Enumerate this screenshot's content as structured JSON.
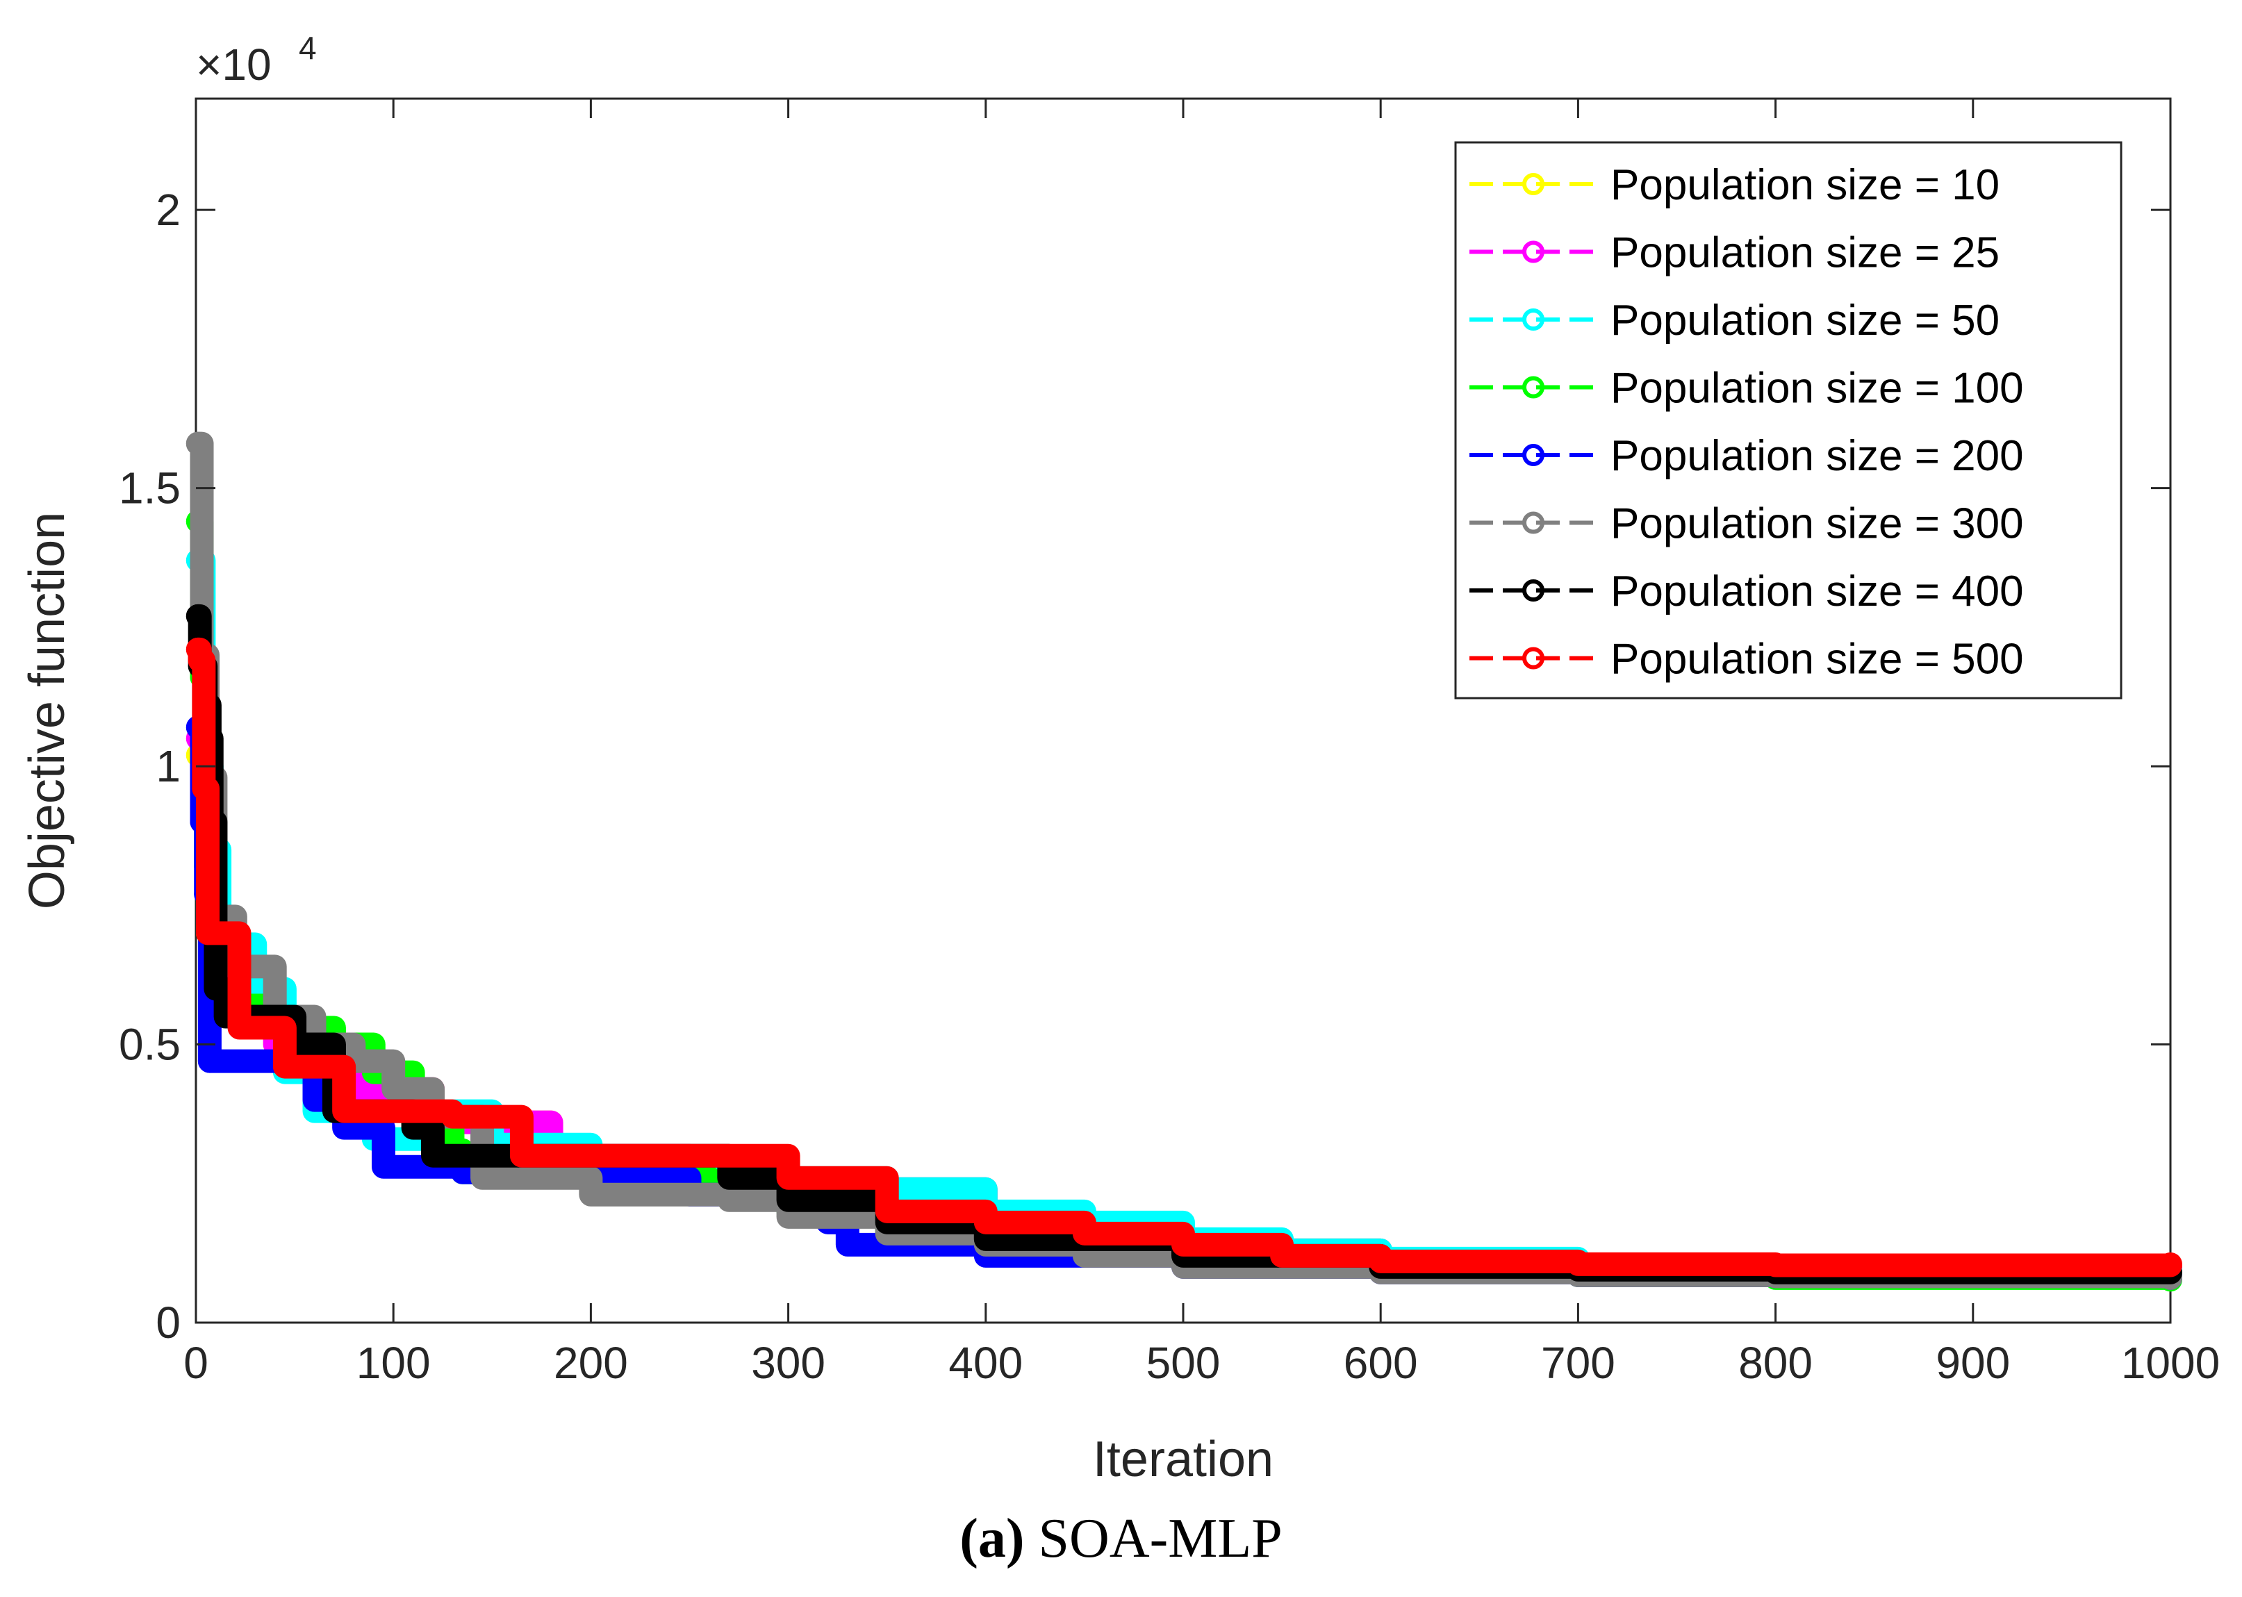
{
  "chart_data": {
    "type": "line",
    "title": "",
    "xlabel": "Iteration",
    "ylabel": "Objective function",
    "y_exponent_label": "×10",
    "y_exponent_power": "4",
    "xlim": [
      0,
      1000
    ],
    "ylim": [
      0,
      2.2
    ],
    "x_ticks": [
      0,
      100,
      200,
      300,
      400,
      500,
      600,
      700,
      800,
      900,
      1000
    ],
    "x_tick_labels": [
      "0",
      "100",
      "200",
      "300",
      "400",
      "500",
      "600",
      "700",
      "800",
      "900",
      "1000"
    ],
    "y_ticks": [
      0,
      0.5,
      1,
      1.5,
      2
    ],
    "y_tick_labels": [
      "0",
      "0.5",
      "1",
      "1.5",
      "2"
    ],
    "grid": false,
    "legend_position": "top-right",
    "series": [
      {
        "name": "Population size = 10",
        "color": "#ffff00",
        "points": [
          [
            1,
            1.02
          ],
          [
            3,
            0.9
          ],
          [
            6,
            0.7
          ],
          [
            15,
            0.6
          ],
          [
            40,
            0.5
          ],
          [
            80,
            0.42
          ],
          [
            120,
            0.36
          ],
          [
            180,
            0.3
          ],
          [
            250,
            0.27
          ],
          [
            300,
            0.24
          ],
          [
            400,
            0.17
          ],
          [
            500,
            0.13
          ],
          [
            600,
            0.11
          ],
          [
            700,
            0.1
          ],
          [
            1000,
            0.095
          ]
        ]
      },
      {
        "name": "Population size = 25",
        "color": "#ff00ff",
        "points": [
          [
            1,
            1.05
          ],
          [
            3,
            0.92
          ],
          [
            6,
            0.72
          ],
          [
            15,
            0.6
          ],
          [
            40,
            0.5
          ],
          [
            80,
            0.42
          ],
          [
            120,
            0.36
          ],
          [
            180,
            0.3
          ],
          [
            250,
            0.27
          ],
          [
            300,
            0.24
          ],
          [
            400,
            0.17
          ],
          [
            500,
            0.13
          ],
          [
            600,
            0.11
          ],
          [
            700,
            0.1
          ],
          [
            1000,
            0.095
          ]
        ]
      },
      {
        "name": "Population size = 50",
        "color": "#00ffff",
        "points": [
          [
            1,
            1.37
          ],
          [
            4,
            1.0
          ],
          [
            8,
            0.85
          ],
          [
            12,
            0.68
          ],
          [
            30,
            0.6
          ],
          [
            45,
            0.45
          ],
          [
            60,
            0.38
          ],
          [
            90,
            0.33
          ],
          [
            120,
            0.38
          ],
          [
            150,
            0.32
          ],
          [
            200,
            0.28
          ],
          [
            250,
            0.27
          ],
          [
            300,
            0.26
          ],
          [
            350,
            0.24
          ],
          [
            400,
            0.2
          ],
          [
            450,
            0.18
          ],
          [
            500,
            0.15
          ],
          [
            550,
            0.13
          ],
          [
            600,
            0.115
          ],
          [
            700,
            0.1
          ],
          [
            800,
            0.095
          ],
          [
            1000,
            0.09
          ]
        ]
      },
      {
        "name": "Population size = 100",
        "color": "#00ff00",
        "points": [
          [
            1,
            1.44
          ],
          [
            3,
            1.16
          ],
          [
            5,
            0.82
          ],
          [
            8,
            0.57
          ],
          [
            40,
            0.53
          ],
          [
            70,
            0.5
          ],
          [
            90,
            0.45
          ],
          [
            110,
            0.36
          ],
          [
            130,
            0.31
          ],
          [
            135,
            0.27
          ],
          [
            200,
            0.26
          ],
          [
            260,
            0.25
          ],
          [
            300,
            0.2
          ],
          [
            350,
            0.15
          ],
          [
            400,
            0.13
          ],
          [
            500,
            0.11
          ],
          [
            600,
            0.095
          ],
          [
            700,
            0.085
          ],
          [
            800,
            0.08
          ],
          [
            1000,
            0.077
          ]
        ]
      },
      {
        "name": "Population size = 200",
        "color": "#0000ff",
        "points": [
          [
            1,
            1.07
          ],
          [
            3,
            0.9
          ],
          [
            5,
            0.77
          ],
          [
            7,
            0.47
          ],
          [
            40,
            0.47
          ],
          [
            60,
            0.4
          ],
          [
            75,
            0.35
          ],
          [
            95,
            0.28
          ],
          [
            135,
            0.27
          ],
          [
            200,
            0.26
          ],
          [
            250,
            0.23
          ],
          [
            320,
            0.18
          ],
          [
            330,
            0.14
          ],
          [
            400,
            0.12
          ],
          [
            500,
            0.1
          ],
          [
            600,
            0.09
          ],
          [
            700,
            0.085
          ],
          [
            800,
            0.083
          ],
          [
            1000,
            0.08
          ]
        ]
      },
      {
        "name": "Population size = 300",
        "color": "#808080",
        "points": [
          [
            1,
            1.58
          ],
          [
            3,
            1.2
          ],
          [
            6,
            0.98
          ],
          [
            10,
            0.73
          ],
          [
            20,
            0.64
          ],
          [
            40,
            0.55
          ],
          [
            60,
            0.5
          ],
          [
            80,
            0.47
          ],
          [
            100,
            0.42
          ],
          [
            120,
            0.37
          ],
          [
            145,
            0.26
          ],
          [
            200,
            0.23
          ],
          [
            270,
            0.22
          ],
          [
            300,
            0.19
          ],
          [
            350,
            0.16
          ],
          [
            400,
            0.14
          ],
          [
            450,
            0.12
          ],
          [
            500,
            0.1
          ],
          [
            600,
            0.09
          ],
          [
            700,
            0.085
          ],
          [
            800,
            0.083
          ],
          [
            1000,
            0.08
          ]
        ]
      },
      {
        "name": "Population size = 400",
        "color": "#000000",
        "points": [
          [
            1,
            1.27
          ],
          [
            2,
            1.18
          ],
          [
            5,
            1.11
          ],
          [
            7,
            1.05
          ],
          [
            8,
            0.9
          ],
          [
            10,
            0.6
          ],
          [
            15,
            0.55
          ],
          [
            50,
            0.5
          ],
          [
            70,
            0.38
          ],
          [
            110,
            0.35
          ],
          [
            120,
            0.3
          ],
          [
            200,
            0.3
          ],
          [
            270,
            0.26
          ],
          [
            300,
            0.22
          ],
          [
            350,
            0.18
          ],
          [
            400,
            0.15
          ],
          [
            500,
            0.12
          ],
          [
            600,
            0.1
          ],
          [
            700,
            0.095
          ],
          [
            800,
            0.09
          ],
          [
            1000,
            0.09
          ]
        ]
      },
      {
        "name": "Population size = 500",
        "color": "#ff0000",
        "points": [
          [
            1,
            1.21
          ],
          [
            2,
            1.19
          ],
          [
            4,
            0.96
          ],
          [
            6,
            0.7
          ],
          [
            20,
            0.7
          ],
          [
            22,
            0.53
          ],
          [
            45,
            0.46
          ],
          [
            75,
            0.38
          ],
          [
            130,
            0.37
          ],
          [
            165,
            0.3
          ],
          [
            270,
            0.3
          ],
          [
            300,
            0.26
          ],
          [
            350,
            0.2
          ],
          [
            400,
            0.18
          ],
          [
            450,
            0.16
          ],
          [
            500,
            0.14
          ],
          [
            550,
            0.12
          ],
          [
            600,
            0.11
          ],
          [
            700,
            0.105
          ],
          [
            800,
            0.103
          ],
          [
            1000,
            0.105
          ]
        ]
      }
    ]
  },
  "caption": {
    "label": "(a)",
    "text": " SOA-MLP"
  }
}
